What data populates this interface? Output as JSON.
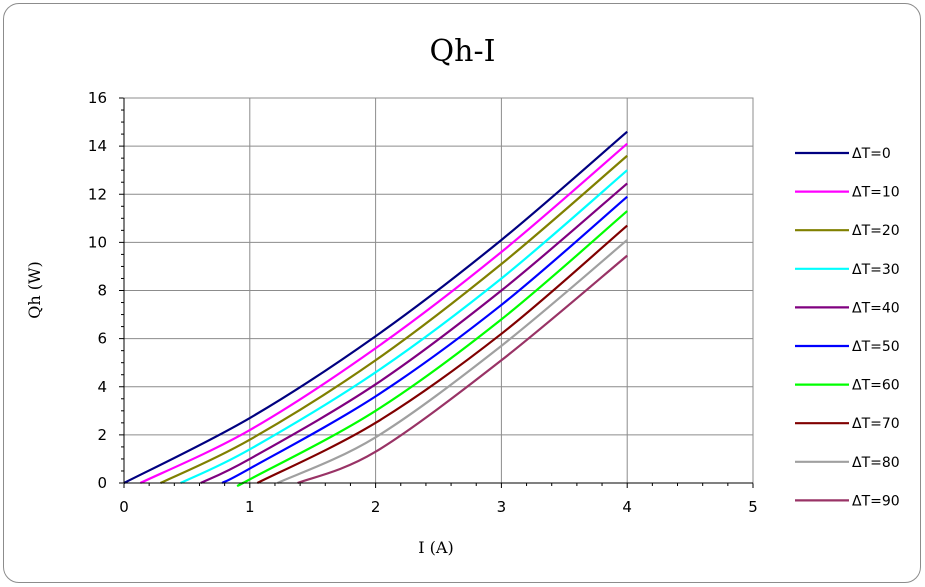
{
  "chart_data": {
    "type": "line",
    "title": "Qh-I",
    "xlabel": "I (A)",
    "ylabel": "Qh (W)",
    "xlim": [
      0,
      5
    ],
    "ylim": [
      0,
      16
    ],
    "x_ticks": [
      "0",
      "1",
      "2",
      "3",
      "4",
      "5"
    ],
    "y_ticks": [
      "0",
      "2",
      "4",
      "6",
      "8",
      "10",
      "12",
      "14",
      "16"
    ],
    "grid": true,
    "legend_position": "right",
    "series": [
      {
        "name": "ΔT=0",
        "color": "#000080",
        "points": [
          [
            0,
            0
          ],
          [
            1,
            2.7
          ],
          [
            2,
            6.1
          ],
          [
            3,
            10.1
          ],
          [
            4,
            14.6
          ]
        ]
      },
      {
        "name": "ΔT=10",
        "color": "#ff00ff",
        "points": [
          [
            0.13,
            0
          ],
          [
            1,
            2.2
          ],
          [
            2,
            5.6
          ],
          [
            3,
            9.6
          ],
          [
            4,
            14.1
          ]
        ]
      },
      {
        "name": "ΔT=20",
        "color": "#808000",
        "points": [
          [
            0.29,
            0
          ],
          [
            1,
            1.8
          ],
          [
            2,
            5.1
          ],
          [
            3,
            9.1
          ],
          [
            4,
            13.6
          ]
        ]
      },
      {
        "name": "ΔT=30",
        "color": "#00ffff",
        "points": [
          [
            0.45,
            0
          ],
          [
            1,
            1.4
          ],
          [
            2,
            4.6
          ],
          [
            3,
            8.5
          ],
          [
            4,
            13.0
          ]
        ]
      },
      {
        "name": "ΔT=40",
        "color": "#800080",
        "points": [
          [
            0.61,
            0
          ],
          [
            1,
            1.0
          ],
          [
            2,
            4.1
          ],
          [
            3,
            8.0
          ],
          [
            4,
            12.45
          ]
        ]
      },
      {
        "name": "ΔT=50",
        "color": "#0000ff",
        "points": [
          [
            0.78,
            0
          ],
          [
            1,
            0.6
          ],
          [
            2,
            3.6
          ],
          [
            3,
            7.4
          ],
          [
            4,
            11.9
          ]
        ]
      },
      {
        "name": "ΔT=60",
        "color": "#00ff00",
        "points": [
          [
            0.94,
            0
          ],
          [
            1,
            0.15
          ],
          [
            2,
            3.0
          ],
          [
            3,
            6.8
          ],
          [
            4,
            11.3
          ]
        ]
      },
      {
        "name": "ΔT=70",
        "color": "#800000",
        "points": [
          [
            1.06,
            0
          ],
          [
            2,
            2.5
          ],
          [
            3,
            6.2
          ],
          [
            4,
            10.7
          ]
        ]
      },
      {
        "name": "ΔT=80",
        "color": "#a0a0a0",
        "points": [
          [
            1.22,
            0
          ],
          [
            2,
            1.9
          ],
          [
            3,
            5.7
          ],
          [
            4,
            10.1
          ]
        ]
      },
      {
        "name": "ΔT=90",
        "color": "#993366",
        "points": [
          [
            1.38,
            0
          ],
          [
            2,
            1.3
          ],
          [
            3,
            5.1
          ],
          [
            4,
            9.45
          ]
        ]
      }
    ]
  }
}
